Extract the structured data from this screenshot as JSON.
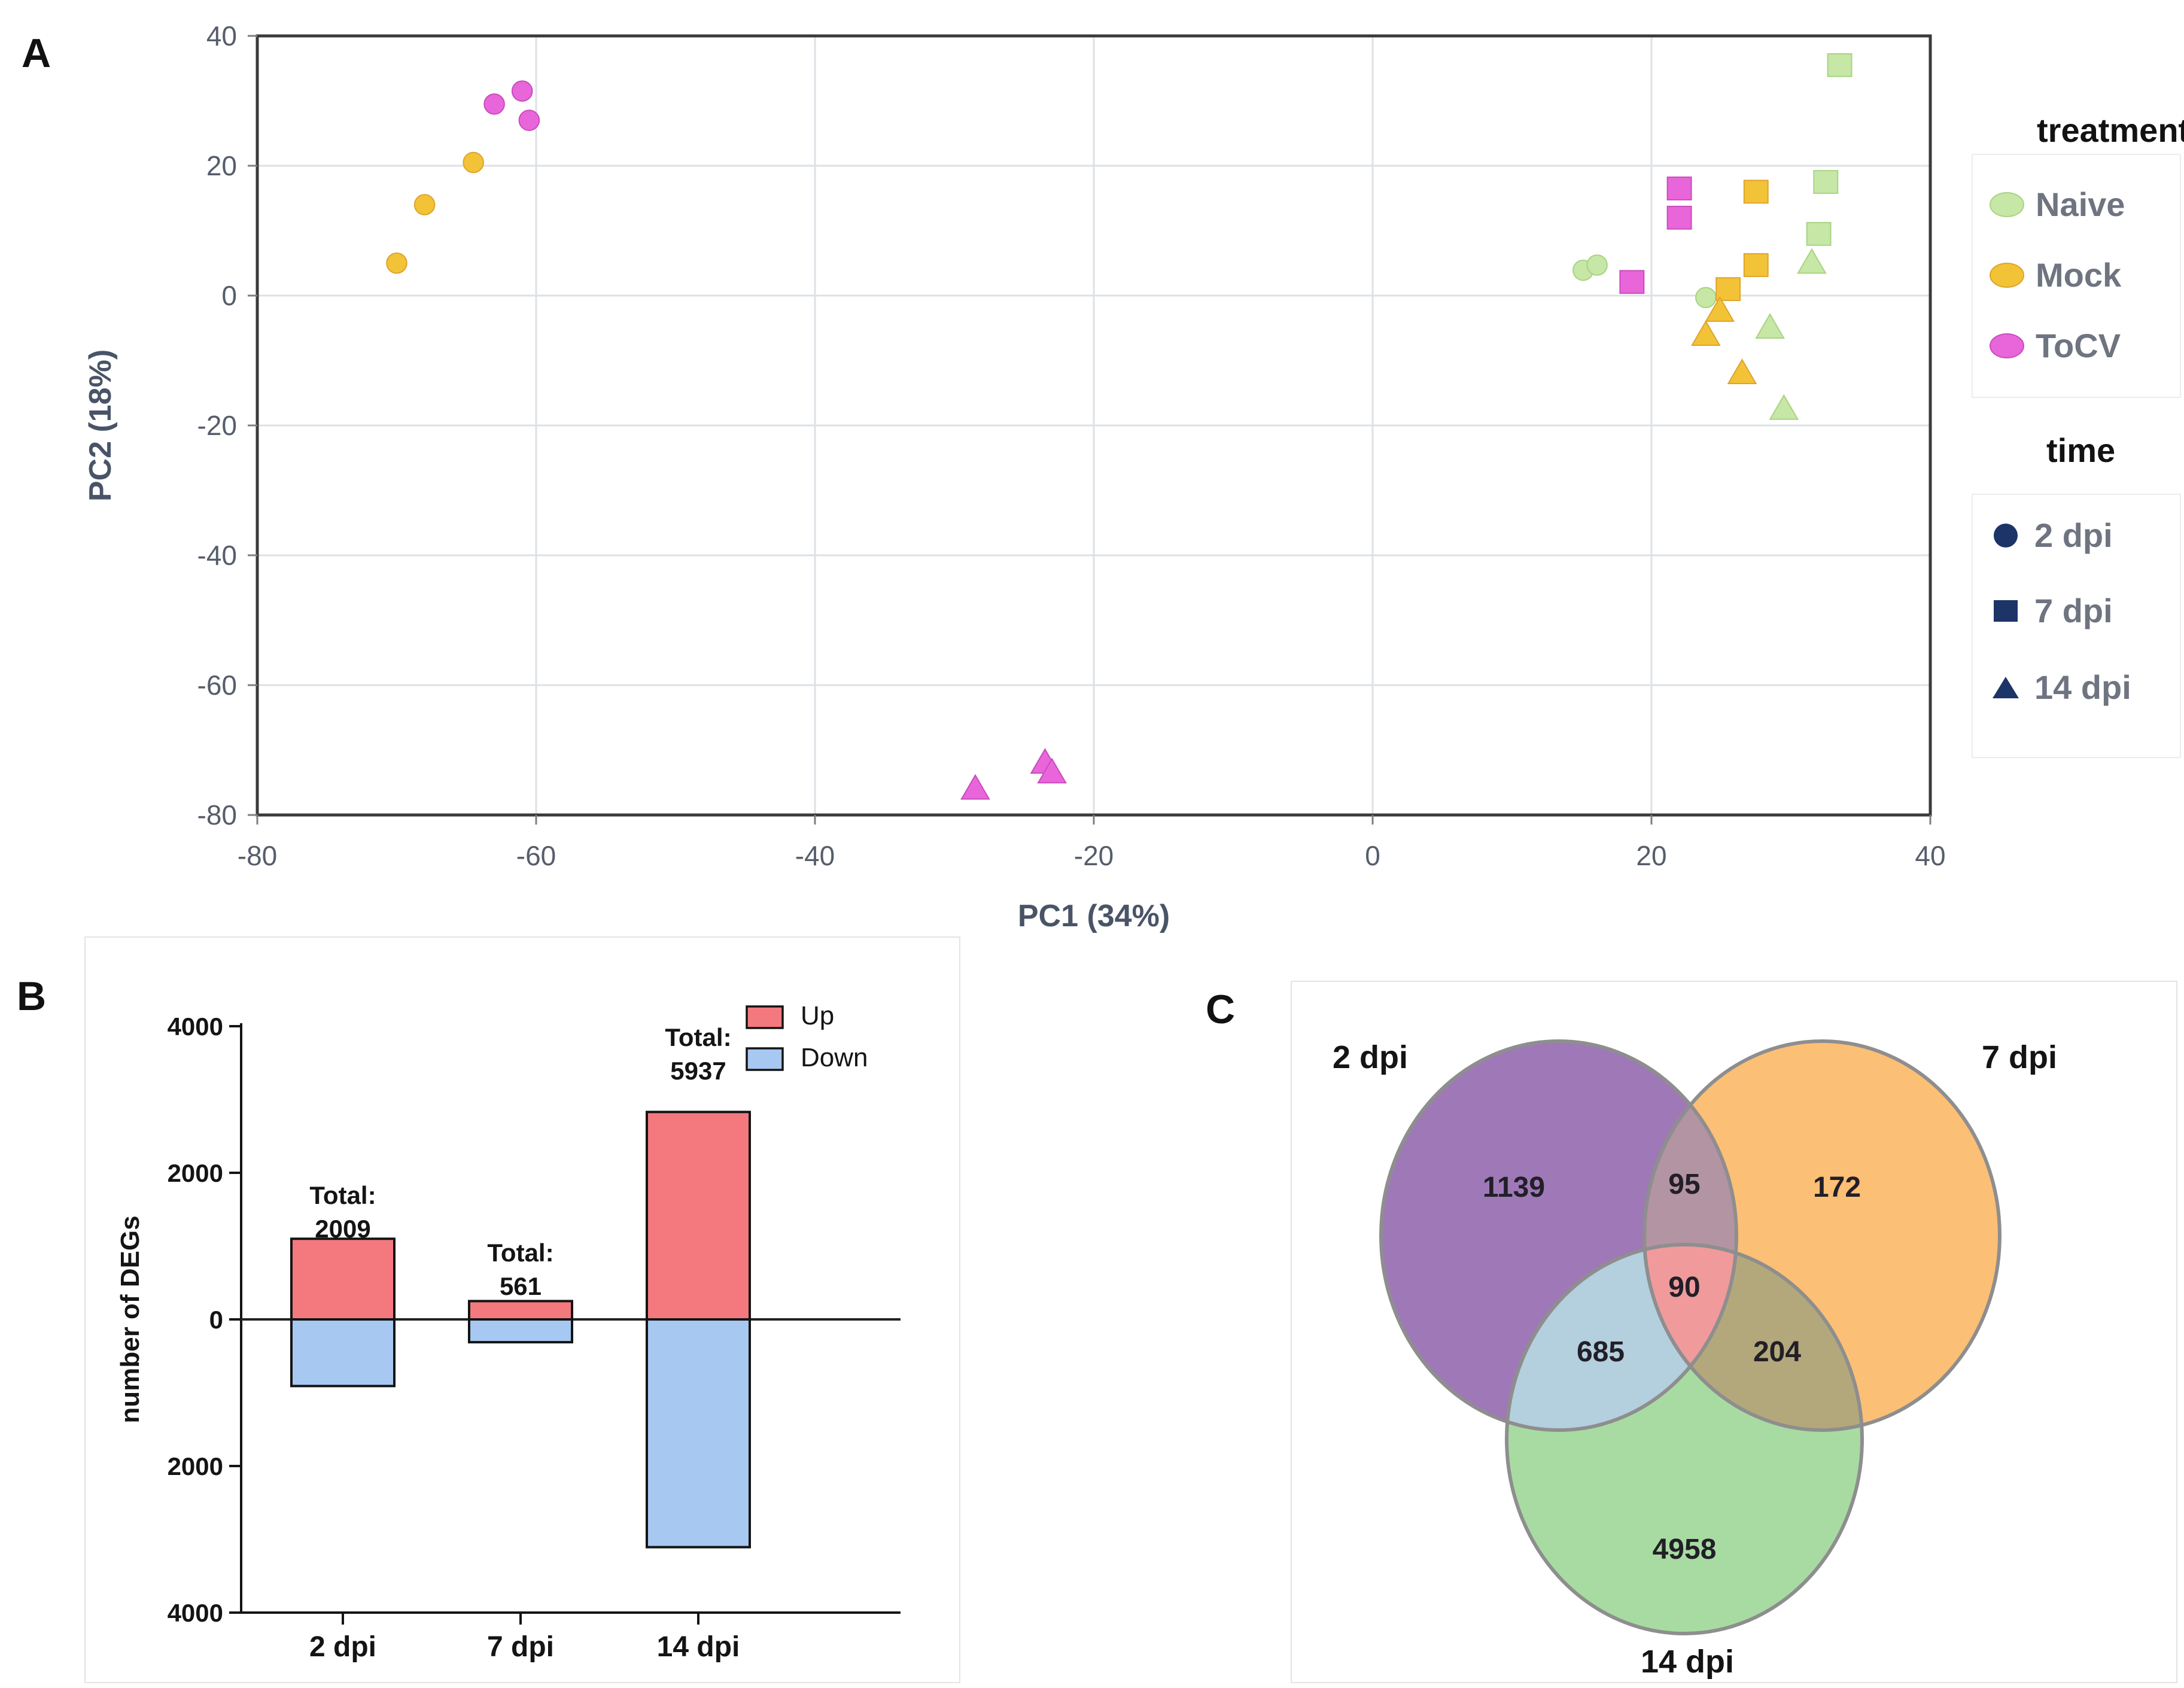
{
  "panels": {
    "a": "A",
    "b": "B",
    "c": "C"
  },
  "colors": {
    "naive": "#C6E7A6",
    "naive_stroke": "#A9D383",
    "mock": "#F3C337",
    "mock_stroke": "#DFA32B",
    "tocv": "#E966DA",
    "tocv_stroke": "#C94BBC",
    "time_symbol": "#1C3467",
    "up": "#F4797F",
    "down": "#A6C8F1",
    "venn_2dpi": "#9F79B7",
    "venn_7dpi": "#FCBF76",
    "venn_14dpi": "#A8DBA2",
    "venn_2_7": "#B394A3",
    "venn_2_14": "#B4CFDD",
    "venn_7_14": "#B3A87B",
    "venn_center": "#F09A9C"
  },
  "chart_data": [
    {
      "type": "scatter",
      "xlabel": "PC1 (34%)",
      "ylabel": "PC2 (18%)",
      "xlim": [
        -80,
        40
      ],
      "ylim": [
        -80,
        40
      ],
      "x_ticks": [
        -80,
        -60,
        -40,
        -20,
        0,
        20,
        40
      ],
      "y_ticks": [
        40,
        20,
        0,
        -20,
        -40,
        -60,
        -80
      ],
      "grid": true,
      "legend": {
        "treatment_title": "treatment",
        "time_title": "time",
        "treatments": [
          {
            "name": "Naive",
            "color": "#C6E7A6",
            "stroke": "#A9D383"
          },
          {
            "name": "Mock",
            "color": "#F3C337",
            "stroke": "#DFA32B"
          },
          {
            "name": "ToCV",
            "color": "#E966DA",
            "stroke": "#C94BBC"
          }
        ],
        "times": [
          {
            "name": "2 dpi",
            "marker": "circle"
          },
          {
            "name": "7 dpi",
            "marker": "square"
          },
          {
            "name": "14 dpi",
            "marker": "triangle"
          }
        ],
        "symbol_color": "#1C3467"
      },
      "series": [
        {
          "treatment": "Naive",
          "time": "2 dpi",
          "marker": "circle",
          "color": "#C6E7A6",
          "stroke": "#A9D383",
          "points": [
            [
              15.1,
              3.9
            ],
            [
              16.1,
              4.7
            ],
            [
              23.9,
              -0.3
            ]
          ]
        },
        {
          "treatment": "Naive",
          "time": "7 dpi",
          "marker": "square",
          "color": "#C6E7A6",
          "stroke": "#A9D383",
          "points": [
            [
              33.5,
              35.5
            ],
            [
              32.5,
              17.5
            ],
            [
              32.0,
              9.5
            ]
          ]
        },
        {
          "treatment": "Naive",
          "time": "14 dpi",
          "marker": "triangle",
          "color": "#C6E7A6",
          "stroke": "#A9D383",
          "points": [
            [
              31.5,
              5.0
            ],
            [
              28.5,
              -5.0
            ],
            [
              29.5,
              -17.5
            ]
          ]
        },
        {
          "treatment": "Mock",
          "time": "2 dpi",
          "marker": "circle",
          "color": "#F3C337",
          "stroke": "#DFA32B",
          "points": [
            [
              -64.5,
              20.5
            ],
            [
              -68.0,
              14.0
            ],
            [
              -70.0,
              5.0
            ]
          ]
        },
        {
          "treatment": "Mock",
          "time": "7 dpi",
          "marker": "square",
          "color": "#F3C337",
          "stroke": "#DFA32B",
          "points": [
            [
              27.5,
              16.0
            ],
            [
              27.5,
              4.7
            ],
            [
              25.5,
              1.0
            ]
          ]
        },
        {
          "treatment": "Mock",
          "time": "14 dpi",
          "marker": "triangle",
          "color": "#F3C337",
          "stroke": "#DFA32B",
          "points": [
            [
              24.9,
              -2.4
            ],
            [
              23.9,
              -6.1
            ],
            [
              26.5,
              -12.0
            ]
          ]
        },
        {
          "treatment": "ToCV",
          "time": "2 dpi",
          "marker": "circle",
          "color": "#E966DA",
          "stroke": "#C94BBC",
          "points": [
            [
              -63.0,
              29.5
            ],
            [
              -61.0,
              31.5
            ],
            [
              -60.5,
              27.0
            ]
          ]
        },
        {
          "treatment": "ToCV",
          "time": "7 dpi",
          "marker": "square",
          "color": "#E966DA",
          "stroke": "#C94BBC",
          "points": [
            [
              22.0,
              16.5
            ],
            [
              22.0,
              12.0
            ],
            [
              18.6,
              2.1
            ]
          ]
        },
        {
          "treatment": "ToCV",
          "time": "14 dpi",
          "marker": "triangle",
          "color": "#E966DA",
          "stroke": "#C94BBC",
          "points": [
            [
              -28.5,
              -76.0
            ],
            [
              -23.5,
              -72.0
            ],
            [
              -23.0,
              -73.5
            ]
          ]
        }
      ]
    },
    {
      "type": "bar",
      "ylabel": "number of DEGs",
      "categories": [
        "2 dpi",
        "7 dpi",
        "14 dpi"
      ],
      "y_ticks": [
        {
          "label": "4000",
          "value": 4000
        },
        {
          "label": "2000",
          "value": 2000
        },
        {
          "label": "0",
          "value": 0
        },
        {
          "label": "2000",
          "value": -2000
        },
        {
          "label": "4000",
          "value": -4000
        }
      ],
      "ylim": [
        -4000,
        4000
      ],
      "series": [
        {
          "name": "Up",
          "color": "#F4797F",
          "values": [
            1100,
            250,
            2830
          ]
        },
        {
          "name": "Down",
          "color": "#A6C8F1",
          "values": [
            909,
            311,
            3107
          ]
        }
      ],
      "totals": {
        "prefix": "Total:",
        "values": [
          "2009",
          "561",
          "5937"
        ]
      },
      "legend_position": "top-right"
    },
    {
      "type": "venn",
      "sets": [
        {
          "id": "2",
          "name": "2 dpi",
          "color": "#9F79B7"
        },
        {
          "id": "7",
          "name": "7 dpi",
          "color": "#FCBF76"
        },
        {
          "id": "14",
          "name": "14 dpi",
          "color": "#A8DBA2"
        }
      ],
      "overlap_colors": {
        "2_7": "#B394A3",
        "2_14": "#B4CFDD",
        "7_14": "#B3A87B",
        "2_7_14": "#F09A9C"
      },
      "regions": [
        {
          "id": "2",
          "value": "1139"
        },
        {
          "id": "2_7",
          "value": "95"
        },
        {
          "id": "7",
          "value": "172"
        },
        {
          "id": "2_7_14",
          "value": "90"
        },
        {
          "id": "2_14",
          "value": "685"
        },
        {
          "id": "7_14",
          "value": "204"
        },
        {
          "id": "14",
          "value": "4958"
        }
      ]
    }
  ]
}
